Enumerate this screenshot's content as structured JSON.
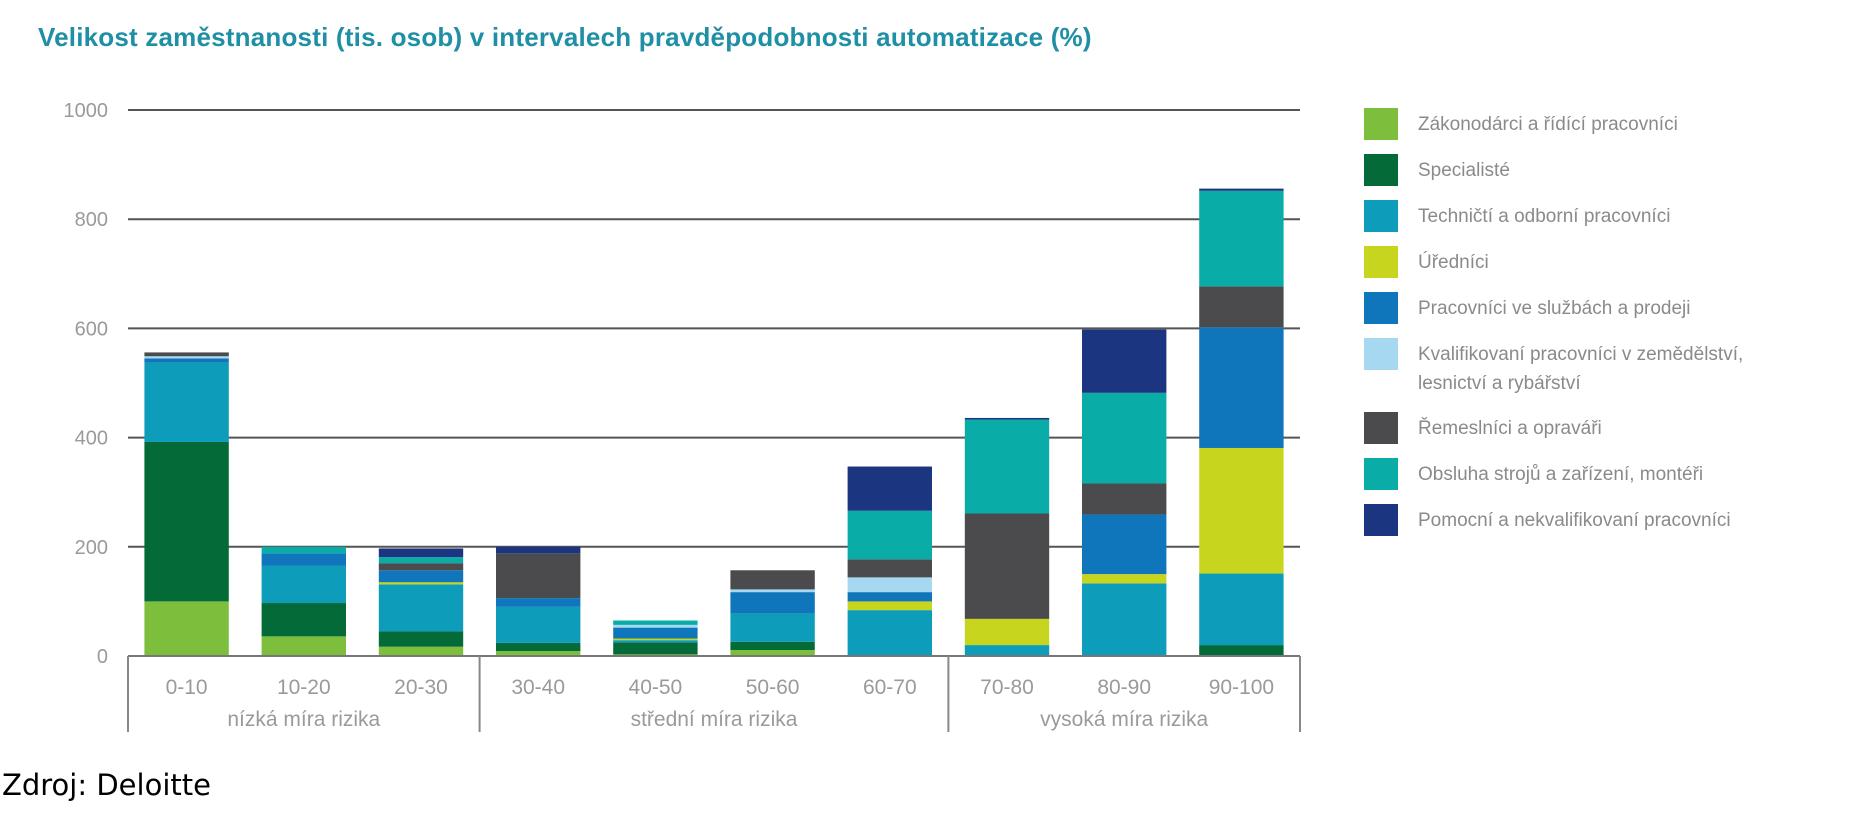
{
  "source": "Zdroj: Deloitte",
  "chart_data": {
    "type": "bar",
    "stacked": true,
    "title": "Velikost zaměstnanosti (tis. osob) v intervalech pravděpodobnosti automatizace (%)",
    "xlabel": "",
    "ylabel": "",
    "ylim": [
      0,
      1000
    ],
    "yticks": [
      0,
      200,
      400,
      600,
      800,
      1000
    ],
    "grid": true,
    "legend_position": "right",
    "categories": [
      "0-10",
      "10-20",
      "20-30",
      "30-40",
      "40-50",
      "50-60",
      "60-70",
      "70-80",
      "80-90",
      "90-100"
    ],
    "groups": [
      {
        "label": "nízká míra rizika",
        "categories": [
          "0-10",
          "10-20",
          "20-30"
        ]
      },
      {
        "label": "střední míra rizika",
        "categories": [
          "30-40",
          "40-50",
          "50-60",
          "60-70"
        ]
      },
      {
        "label": "vysoká míra rizika",
        "categories": [
          "70-80",
          "80-90",
          "90-100"
        ]
      }
    ],
    "series": [
      {
        "name": "Zákonodárci a řídící pracovníci",
        "color": "#7dbf3c",
        "values": [
          100,
          36,
          17,
          9,
          3,
          11,
          0,
          0,
          0,
          0
        ]
      },
      {
        "name": "Specialisté",
        "color": "#046a38",
        "values": [
          292,
          61,
          28,
          15,
          22,
          15,
          0,
          0,
          0,
          20
        ]
      },
      {
        "name": "Techničtí a odborní pracovníci",
        "color": "#0d9dbb",
        "values": [
          145,
          68,
          86,
          66,
          4,
          52,
          84,
          20,
          133,
          131
        ]
      },
      {
        "name": "Úředníci",
        "color": "#c8d51f",
        "values": [
          0,
          0,
          4,
          0,
          3,
          0,
          16,
          48,
          17,
          230
        ]
      },
      {
        "name": "Pracovníci ve službách a prodeji",
        "color": "#0f76bb",
        "values": [
          8,
          23,
          22,
          16,
          20,
          39,
          17,
          0,
          109,
          221
        ]
      },
      {
        "name": "Kvalifikovaní pracovníci v zemědělství, lesnictví a rybářství",
        "color": "#a7d8f2",
        "values": [
          4,
          0,
          0,
          0,
          5,
          5,
          27,
          0,
          0,
          0
        ]
      },
      {
        "name": "Řemeslníci a opraváři",
        "color": "#4b4b4d",
        "values": [
          7,
          0,
          13,
          82,
          0,
          35,
          33,
          193,
          57,
          75
        ]
      },
      {
        "name": "Obsluha strojů a zařízení, montéři",
        "color": "#0aaca8",
        "values": [
          0,
          12,
          11,
          0,
          8,
          0,
          89,
          172,
          166,
          175
        ]
      },
      {
        "name": "Pomocní a nekvalifikovaní pracovníci",
        "color": "#1b3580",
        "values": [
          0,
          0,
          16,
          12,
          0,
          0,
          81,
          3,
          116,
          4
        ]
      }
    ]
  },
  "legend": [
    {
      "label": "Zákonodárci a řídící pracovníci",
      "color": "#7dbf3c"
    },
    {
      "label": "Specialisté",
      "color": "#046a38"
    },
    {
      "label": "Techničtí a odborní pracovníci",
      "color": "#0d9dbb"
    },
    {
      "label": "Úředníci",
      "color": "#c8d51f"
    },
    {
      "label": "Pracovníci ve službách a prodeji",
      "color": "#0f76bb"
    },
    {
      "label": "Kvalifikovaní pracovníci v zemědělství, lesnictví a rybářství",
      "color": "#a7d8f2"
    },
    {
      "label": "Řemeslníci a opraváři",
      "color": "#4b4b4d"
    },
    {
      "label": "Obsluha strojů a zařízení, montéři",
      "color": "#0aaca8"
    },
    {
      "label": "Pomocní a nekvalifikovaní pracovníci",
      "color": "#1b3580"
    }
  ]
}
